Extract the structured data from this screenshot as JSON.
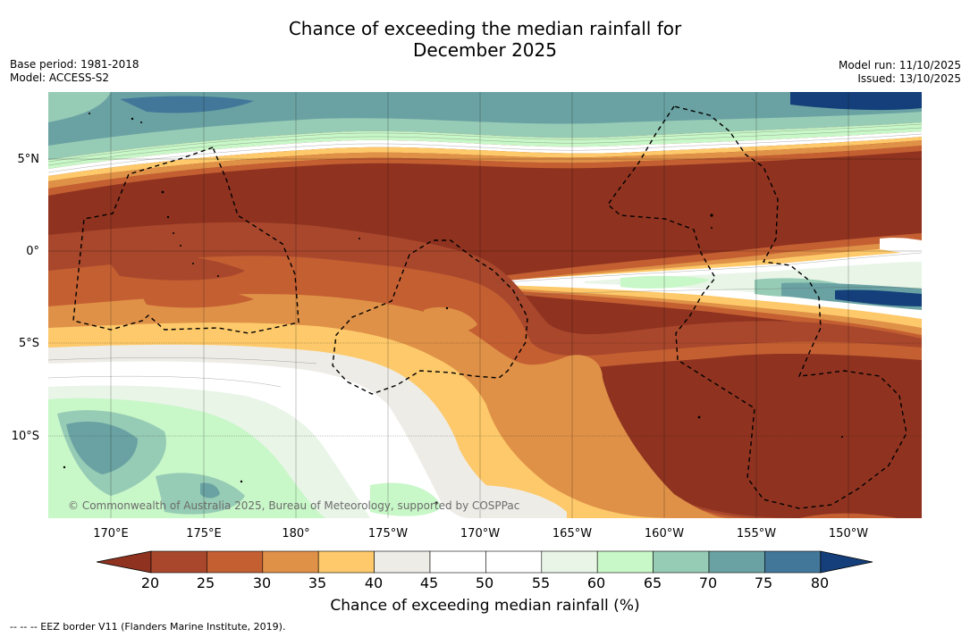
{
  "title": {
    "line1": "Chance of exceeding the median rainfall for",
    "line2": "December 2025"
  },
  "meta": {
    "base_period": "Base period: 1981-2018",
    "model": "Model: ACCESS-S2",
    "model_run": "Model run: 11/10/2025",
    "issued": "Issued: 13/10/2025"
  },
  "map": {
    "copyright": "© Commonwealth of Australia 2025, Bureau of Meteorology, supported by COSPPac",
    "lat_labels": [
      "5°N",
      "0°",
      "5°S",
      "10°S"
    ],
    "lon_labels": [
      "170°E",
      "175°E",
      "180°",
      "175°W",
      "170°W",
      "165°W",
      "160°W",
      "155°W",
      "150°W"
    ]
  },
  "colorbar": {
    "label": "Chance of exceeding median rainfall (%)",
    "ticks": [
      "20",
      "25",
      "30",
      "35",
      "40",
      "45",
      "50",
      "55",
      "60",
      "65",
      "70",
      "75",
      "80"
    ],
    "colors": [
      "#8f3320",
      "#a8472c",
      "#c45f32",
      "#df9147",
      "#fdc96a",
      "#eeece6",
      "#ffffff",
      "#ffffff",
      "#e8f5e7",
      "#c8f7c8",
      "#96cbb5",
      "#6aa2a3",
      "#42779a",
      "#143f7a"
    ]
  },
  "footnote": "--  --  -- EEZ border V11 (Flanders Marine Institute, 2019)."
}
